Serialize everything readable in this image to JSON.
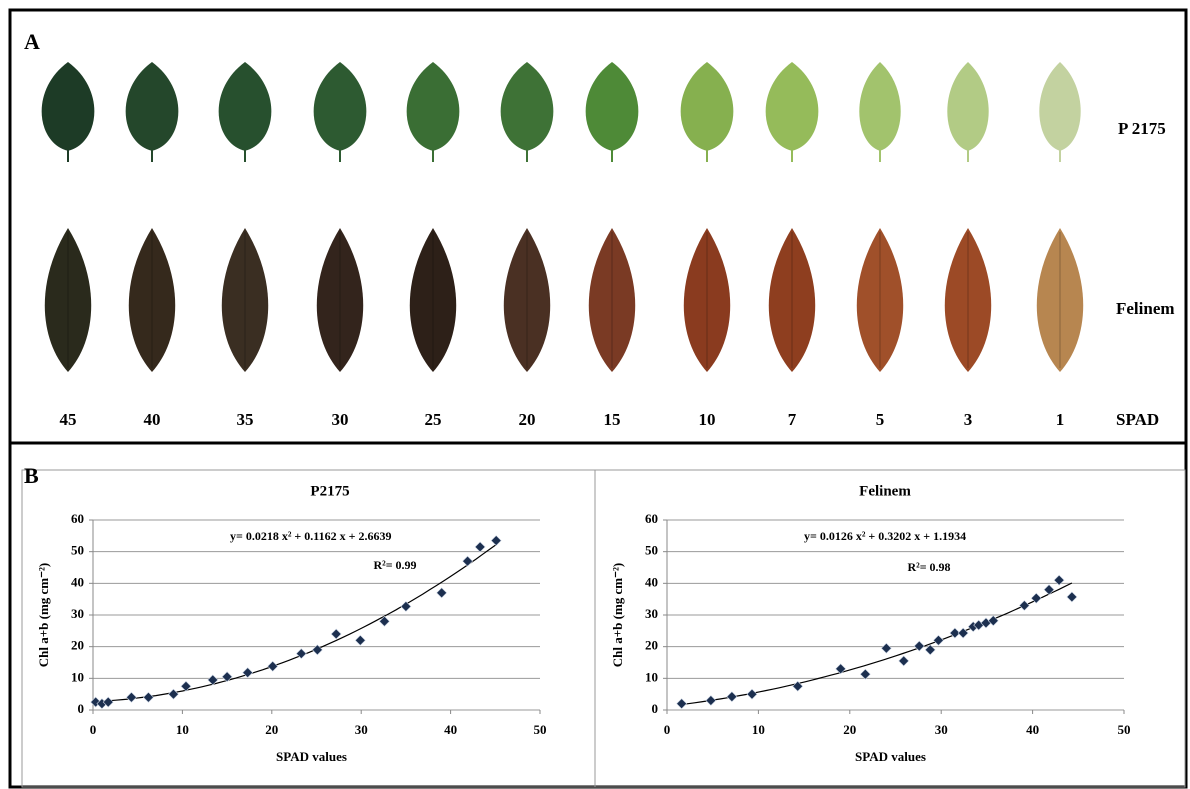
{
  "figure": {
    "panel_labels": [
      "A",
      "B"
    ],
    "row_labels": [
      "P 2175",
      "Felinem"
    ],
    "spad_levels": [
      45,
      40,
      35,
      30,
      25,
      20,
      15,
      10,
      7,
      5,
      3,
      1
    ],
    "spad_label": "SPAD"
  },
  "chart_data": [
    {
      "type": "scatter",
      "title": "P2175",
      "x_label": "SPAD values",
      "y_label": "Chl a+b (mg cm⁻²)",
      "x": [
        0.3,
        1,
        1.7,
        4.3,
        6.2,
        9,
        10.4,
        13.4,
        15,
        17.3,
        20.1,
        23.3,
        25.1,
        27.2,
        29.9,
        32.6,
        35,
        39,
        41.9,
        43.3,
        45.1
      ],
      "values": [
        2.5,
        2,
        2.5,
        4,
        4,
        5,
        7.5,
        9.5,
        10.5,
        11.8,
        13.8,
        17.8,
        19,
        24,
        22,
        28,
        32.7,
        37,
        47,
        51.5,
        53.5
      ],
      "color": "#1c2f4f",
      "trendline": {
        "coefficients": [
          0.0218,
          0.1162,
          2.6639
        ],
        "equation": "y= 0.0218 x² + 0.1162 x + 2.6639",
        "r2": "R²= 0.99"
      },
      "xlim": [
        0,
        50
      ],
      "xticks": [
        0,
        10,
        20,
        30,
        40,
        50
      ],
      "ylim": [
        0,
        60
      ],
      "yticks": [
        0,
        10,
        20,
        30,
        40,
        50,
        60
      ],
      "grid": true
    },
    {
      "type": "scatter",
      "title": "Felinem",
      "x_label": "SPAD values",
      "y_label": "Chl a+b (mg cm⁻²)",
      "x": [
        1.6,
        4.8,
        7.1,
        9.3,
        14.3,
        19,
        21.7,
        24,
        25.9,
        27.6,
        28.8,
        29.7,
        31.5,
        32.4,
        33.5,
        34.1,
        34.9,
        35.7,
        39.1,
        40.4,
        41.8,
        42.9,
        44.3
      ],
      "values": [
        2,
        3,
        4.2,
        5,
        7.5,
        13,
        11.3,
        19.5,
        15.5,
        20.2,
        19,
        22,
        24.3,
        24.3,
        26.3,
        26.8,
        27.5,
        28.2,
        33,
        35.3,
        38,
        41,
        35.7
      ],
      "color": "#1c2f4f",
      "trendline": {
        "coefficients": [
          0.0126,
          0.3202,
          1.1934
        ],
        "equation": "y= 0.0126 x² + 0.3202 x + 1.1934",
        "r2": "R²= 0.98"
      },
      "xlim": [
        0,
        50
      ],
      "xticks": [
        0,
        10,
        20,
        30,
        40,
        50
      ],
      "ylim": [
        0,
        60
      ],
      "yticks": [
        0,
        10,
        20,
        30,
        40,
        50,
        60
      ],
      "grid": true
    }
  ]
}
